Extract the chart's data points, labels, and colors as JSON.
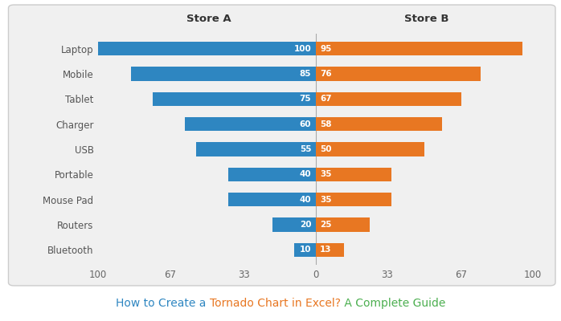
{
  "categories": [
    "Bluetooth",
    "Routers",
    "Mouse Pad",
    "Portable",
    "USB",
    "Charger",
    "Tablet",
    "Mobile",
    "Laptop"
  ],
  "store_a": [
    10,
    20,
    40,
    40,
    55,
    60,
    75,
    85,
    100
  ],
  "store_b": [
    13,
    25,
    35,
    35,
    50,
    58,
    67,
    76,
    95
  ],
  "color_a": "#2E86C1",
  "color_b": "#E87722",
  "xlim": [
    -100,
    100
  ],
  "xticks": [
    -100,
    -67,
    -33,
    0,
    33,
    67,
    100
  ],
  "xticklabels": [
    "100",
    "67",
    "33",
    "0",
    "33",
    "67",
    "100"
  ],
  "label_a": "Store A",
  "label_b": "Store B",
  "chart_bg": "#f0f0f0",
  "outer_bg": "#ffffff",
  "title_text1": "How to Create a ",
  "title_text2": "Tornado Chart in Excel?",
  "title_text3": " A Complete Guide",
  "title_color1": "#2E86C1",
  "title_color2": "#E87722",
  "title_color3": "#4CAF50",
  "bar_height": 0.55,
  "fontsize_bar_label": 7.5,
  "fontsize_axis": 8.5,
  "fontsize_header": 9.5
}
